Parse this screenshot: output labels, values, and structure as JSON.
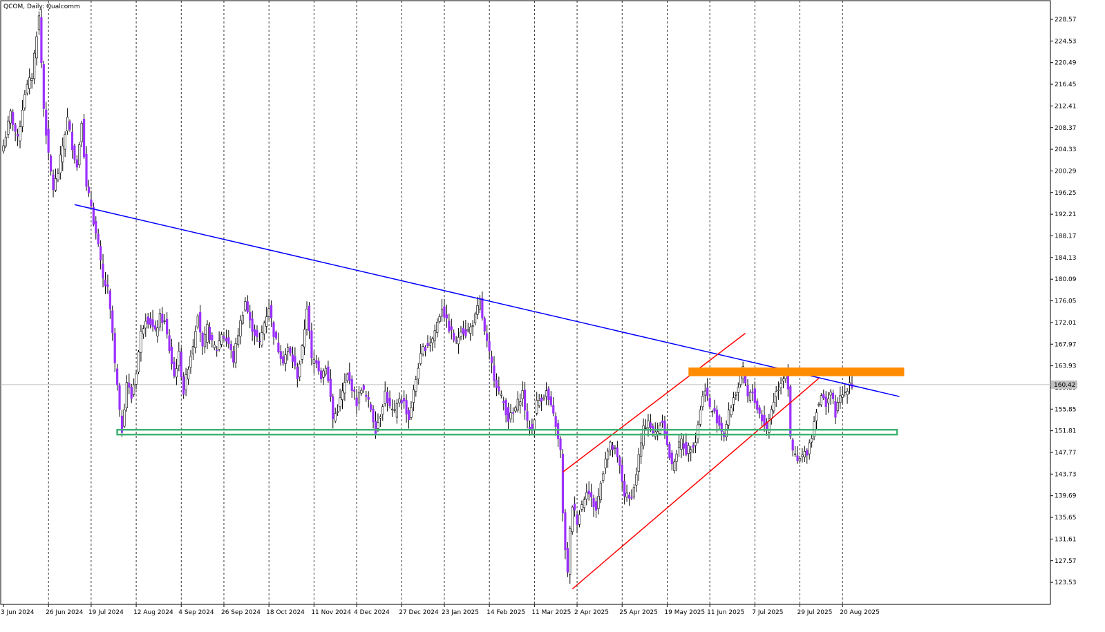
{
  "header": {
    "title": "QCOM, Daily:  Qualcomm"
  },
  "chart_data": {
    "type": "candlestick",
    "symbol": "QCOM",
    "timeframe": "Daily",
    "instrument": "Qualcomm",
    "current_price": "160.42",
    "ylim": [
      120.5,
      231.0
    ],
    "y_ticks": [
      "228.57",
      "224.53",
      "220.49",
      "216.45",
      "212.41",
      "208.37",
      "204.33",
      "200.29",
      "196.25",
      "192.21",
      "188.17",
      "184.13",
      "180.09",
      "176.05",
      "172.01",
      "167.97",
      "163.93",
      "159.89",
      "155.85",
      "151.81",
      "147.77",
      "143.73",
      "139.69",
      "135.65",
      "131.61",
      "127.57",
      "123.53"
    ],
    "x_labels": [
      "3 Jun 2024",
      "26 Jun 2024",
      "19 Jul 2024",
      "12 Aug 2024",
      "4 Sep 2024",
      "26 Sep 2024",
      "18 Oct 2024",
      "11 Nov 2024",
      "4 Dec 2024",
      "27 Dec 2024",
      "23 Jan 2025",
      "14 Feb 2025",
      "11 Mar 2025",
      "2 Apr 2025",
      "25 Apr 2025",
      "19 May 2025",
      "11 Jun 2025",
      "7 Jul 2025",
      "29 Jul 2025",
      "20 Aug 2025"
    ],
    "waypoints": [
      [
        0,
        205
      ],
      [
        3,
        211
      ],
      [
        6,
        206
      ],
      [
        9,
        215
      ],
      [
        12,
        218
      ],
      [
        14,
        226
      ],
      [
        15,
        229
      ],
      [
        17,
        212
      ],
      [
        19,
        203
      ],
      [
        21,
        197
      ],
      [
        23,
        200
      ],
      [
        25,
        205
      ],
      [
        27,
        210
      ],
      [
        29,
        205
      ],
      [
        31,
        201
      ],
      [
        33,
        210
      ],
      [
        35,
        197
      ],
      [
        37,
        194
      ],
      [
        38,
        191
      ],
      [
        40,
        186
      ],
      [
        42,
        180
      ],
      [
        44,
        178
      ],
      [
        46,
        170
      ],
      [
        47,
        164
      ],
      [
        48,
        160
      ],
      [
        49,
        155
      ],
      [
        50,
        152
      ],
      [
        52,
        161
      ],
      [
        54,
        158
      ],
      [
        56,
        163
      ],
      [
        58,
        170
      ],
      [
        60,
        173
      ],
      [
        62,
        172
      ],
      [
        64,
        170
      ],
      [
        66,
        173
      ],
      [
        68,
        172
      ],
      [
        70,
        167
      ],
      [
        72,
        162
      ],
      [
        74,
        166
      ],
      [
        76,
        159
      ],
      [
        78,
        164
      ],
      [
        80,
        168
      ],
      [
        82,
        174
      ],
      [
        84,
        167
      ],
      [
        86,
        171
      ],
      [
        88,
        168
      ],
      [
        90,
        167
      ],
      [
        92,
        170
      ],
      [
        95,
        168
      ],
      [
        97,
        165
      ],
      [
        99,
        170
      ],
      [
        102,
        176
      ],
      [
        104,
        172
      ],
      [
        106,
        170
      ],
      [
        108,
        168
      ],
      [
        110,
        172
      ],
      [
        112,
        175
      ],
      [
        114,
        170
      ],
      [
        116,
        167
      ],
      [
        118,
        165
      ],
      [
        120,
        167
      ],
      [
        122,
        165
      ],
      [
        124,
        162
      ],
      [
        126,
        167
      ],
      [
        128,
        175
      ],
      [
        130,
        165
      ],
      [
        132,
        165
      ],
      [
        134,
        162
      ],
      [
        136,
        164
      ],
      [
        138,
        158
      ],
      [
        139,
        154
      ],
      [
        141,
        156
      ],
      [
        143,
        159
      ],
      [
        145,
        162
      ],
      [
        147,
        160
      ],
      [
        149,
        157
      ],
      [
        151,
        160
      ],
      [
        153,
        158
      ],
      [
        155,
        156
      ],
      [
        157,
        152
      ],
      [
        159,
        155
      ],
      [
        161,
        159
      ],
      [
        163,
        156
      ],
      [
        165,
        155
      ],
      [
        167,
        158
      ],
      [
        169,
        157
      ],
      [
        171,
        154
      ],
      [
        173,
        159
      ],
      [
        175,
        164
      ],
      [
        177,
        167
      ],
      [
        179,
        168
      ],
      [
        181,
        169
      ],
      [
        183,
        172
      ],
      [
        185,
        175
      ],
      [
        187,
        172
      ],
      [
        189,
        170
      ],
      [
        191,
        168
      ],
      [
        193,
        171
      ],
      [
        195,
        170
      ],
      [
        197,
        171
      ],
      [
        199,
        173
      ],
      [
        201,
        176
      ],
      [
        203,
        170
      ],
      [
        205,
        166
      ],
      [
        207,
        162
      ],
      [
        209,
        159
      ],
      [
        211,
        157
      ],
      [
        213,
        154
      ],
      [
        215,
        155
      ],
      [
        217,
        157
      ],
      [
        219,
        159
      ],
      [
        221,
        153
      ],
      [
        223,
        152
      ],
      [
        225,
        157
      ],
      [
        227,
        158
      ],
      [
        229,
        159
      ],
      [
        231,
        156
      ],
      [
        233,
        153
      ],
      [
        234,
        150
      ],
      [
        235,
        148
      ],
      [
        236,
        136
      ],
      [
        237,
        130
      ],
      [
        238,
        125
      ],
      [
        239,
        133
      ],
      [
        240,
        138
      ],
      [
        242,
        135
      ],
      [
        244,
        138
      ],
      [
        246,
        141
      ],
      [
        248,
        139
      ],
      [
        250,
        137
      ],
      [
        252,
        142
      ],
      [
        254,
        147
      ],
      [
        256,
        149
      ],
      [
        258,
        148
      ],
      [
        260,
        145
      ],
      [
        262,
        140
      ],
      [
        264,
        139
      ],
      [
        266,
        141
      ],
      [
        268,
        147
      ],
      [
        270,
        152
      ],
      [
        272,
        154
      ],
      [
        274,
        151
      ],
      [
        276,
        152
      ],
      [
        278,
        154
      ],
      [
        280,
        149
      ],
      [
        282,
        145
      ],
      [
        284,
        148
      ],
      [
        286,
        150
      ],
      [
        288,
        148
      ],
      [
        290,
        149
      ],
      [
        292,
        150
      ],
      [
        294,
        156
      ],
      [
        296,
        160
      ],
      [
        298,
        156
      ],
      [
        300,
        155
      ],
      [
        302,
        153
      ],
      [
        304,
        151
      ],
      [
        306,
        155
      ],
      [
        308,
        158
      ],
      [
        310,
        160
      ],
      [
        312,
        163
      ],
      [
        314,
        158
      ],
      [
        316,
        159
      ],
      [
        318,
        156
      ],
      [
        320,
        154
      ],
      [
        322,
        152
      ],
      [
        324,
        156
      ],
      [
        326,
        159
      ],
      [
        328,
        161
      ],
      [
        330,
        163
      ],
      [
        331,
        160
      ],
      [
        332,
        150
      ],
      [
        333,
        148
      ],
      [
        335,
        146
      ],
      [
        337,
        147
      ],
      [
        339,
        148
      ],
      [
        341,
        151
      ],
      [
        343,
        156
      ],
      [
        345,
        158
      ],
      [
        347,
        157
      ],
      [
        349,
        159
      ],
      [
        351,
        155
      ],
      [
        353,
        158
      ],
      [
        355,
        159
      ],
      [
        357,
        161
      ],
      [
        358,
        160.42
      ]
    ],
    "annotations": {
      "blue_trendline": [
        [
          30,
          194.0
        ],
        [
          378,
          158.2
        ]
      ],
      "red_channel_upper": [
        [
          236,
          144.1
        ],
        [
          313,
          170.0
        ]
      ],
      "red_channel_lower": [
        [
          240,
          122.3
        ],
        [
          344,
          161.6
        ]
      ],
      "green_support_zone": [
        [
          48,
          152.0
        ],
        [
          377,
          151.1
        ]
      ],
      "orange_resistance_zone": [
        [
          289,
          163.6
        ],
        [
          380,
          162.0
        ]
      ],
      "current_price_line": 160.42
    },
    "colors": {
      "bull_candle": "#ffffff",
      "bear_candle": "#9b30ff",
      "candle_outline": "#000000",
      "blue_trendline": "#0000ff",
      "red_channel": "#ff0000",
      "green_zone": "#3cb371",
      "orange_zone": "#ff8c00",
      "price_line": "#c0c0c0",
      "grid_dashed": "#000000"
    }
  }
}
